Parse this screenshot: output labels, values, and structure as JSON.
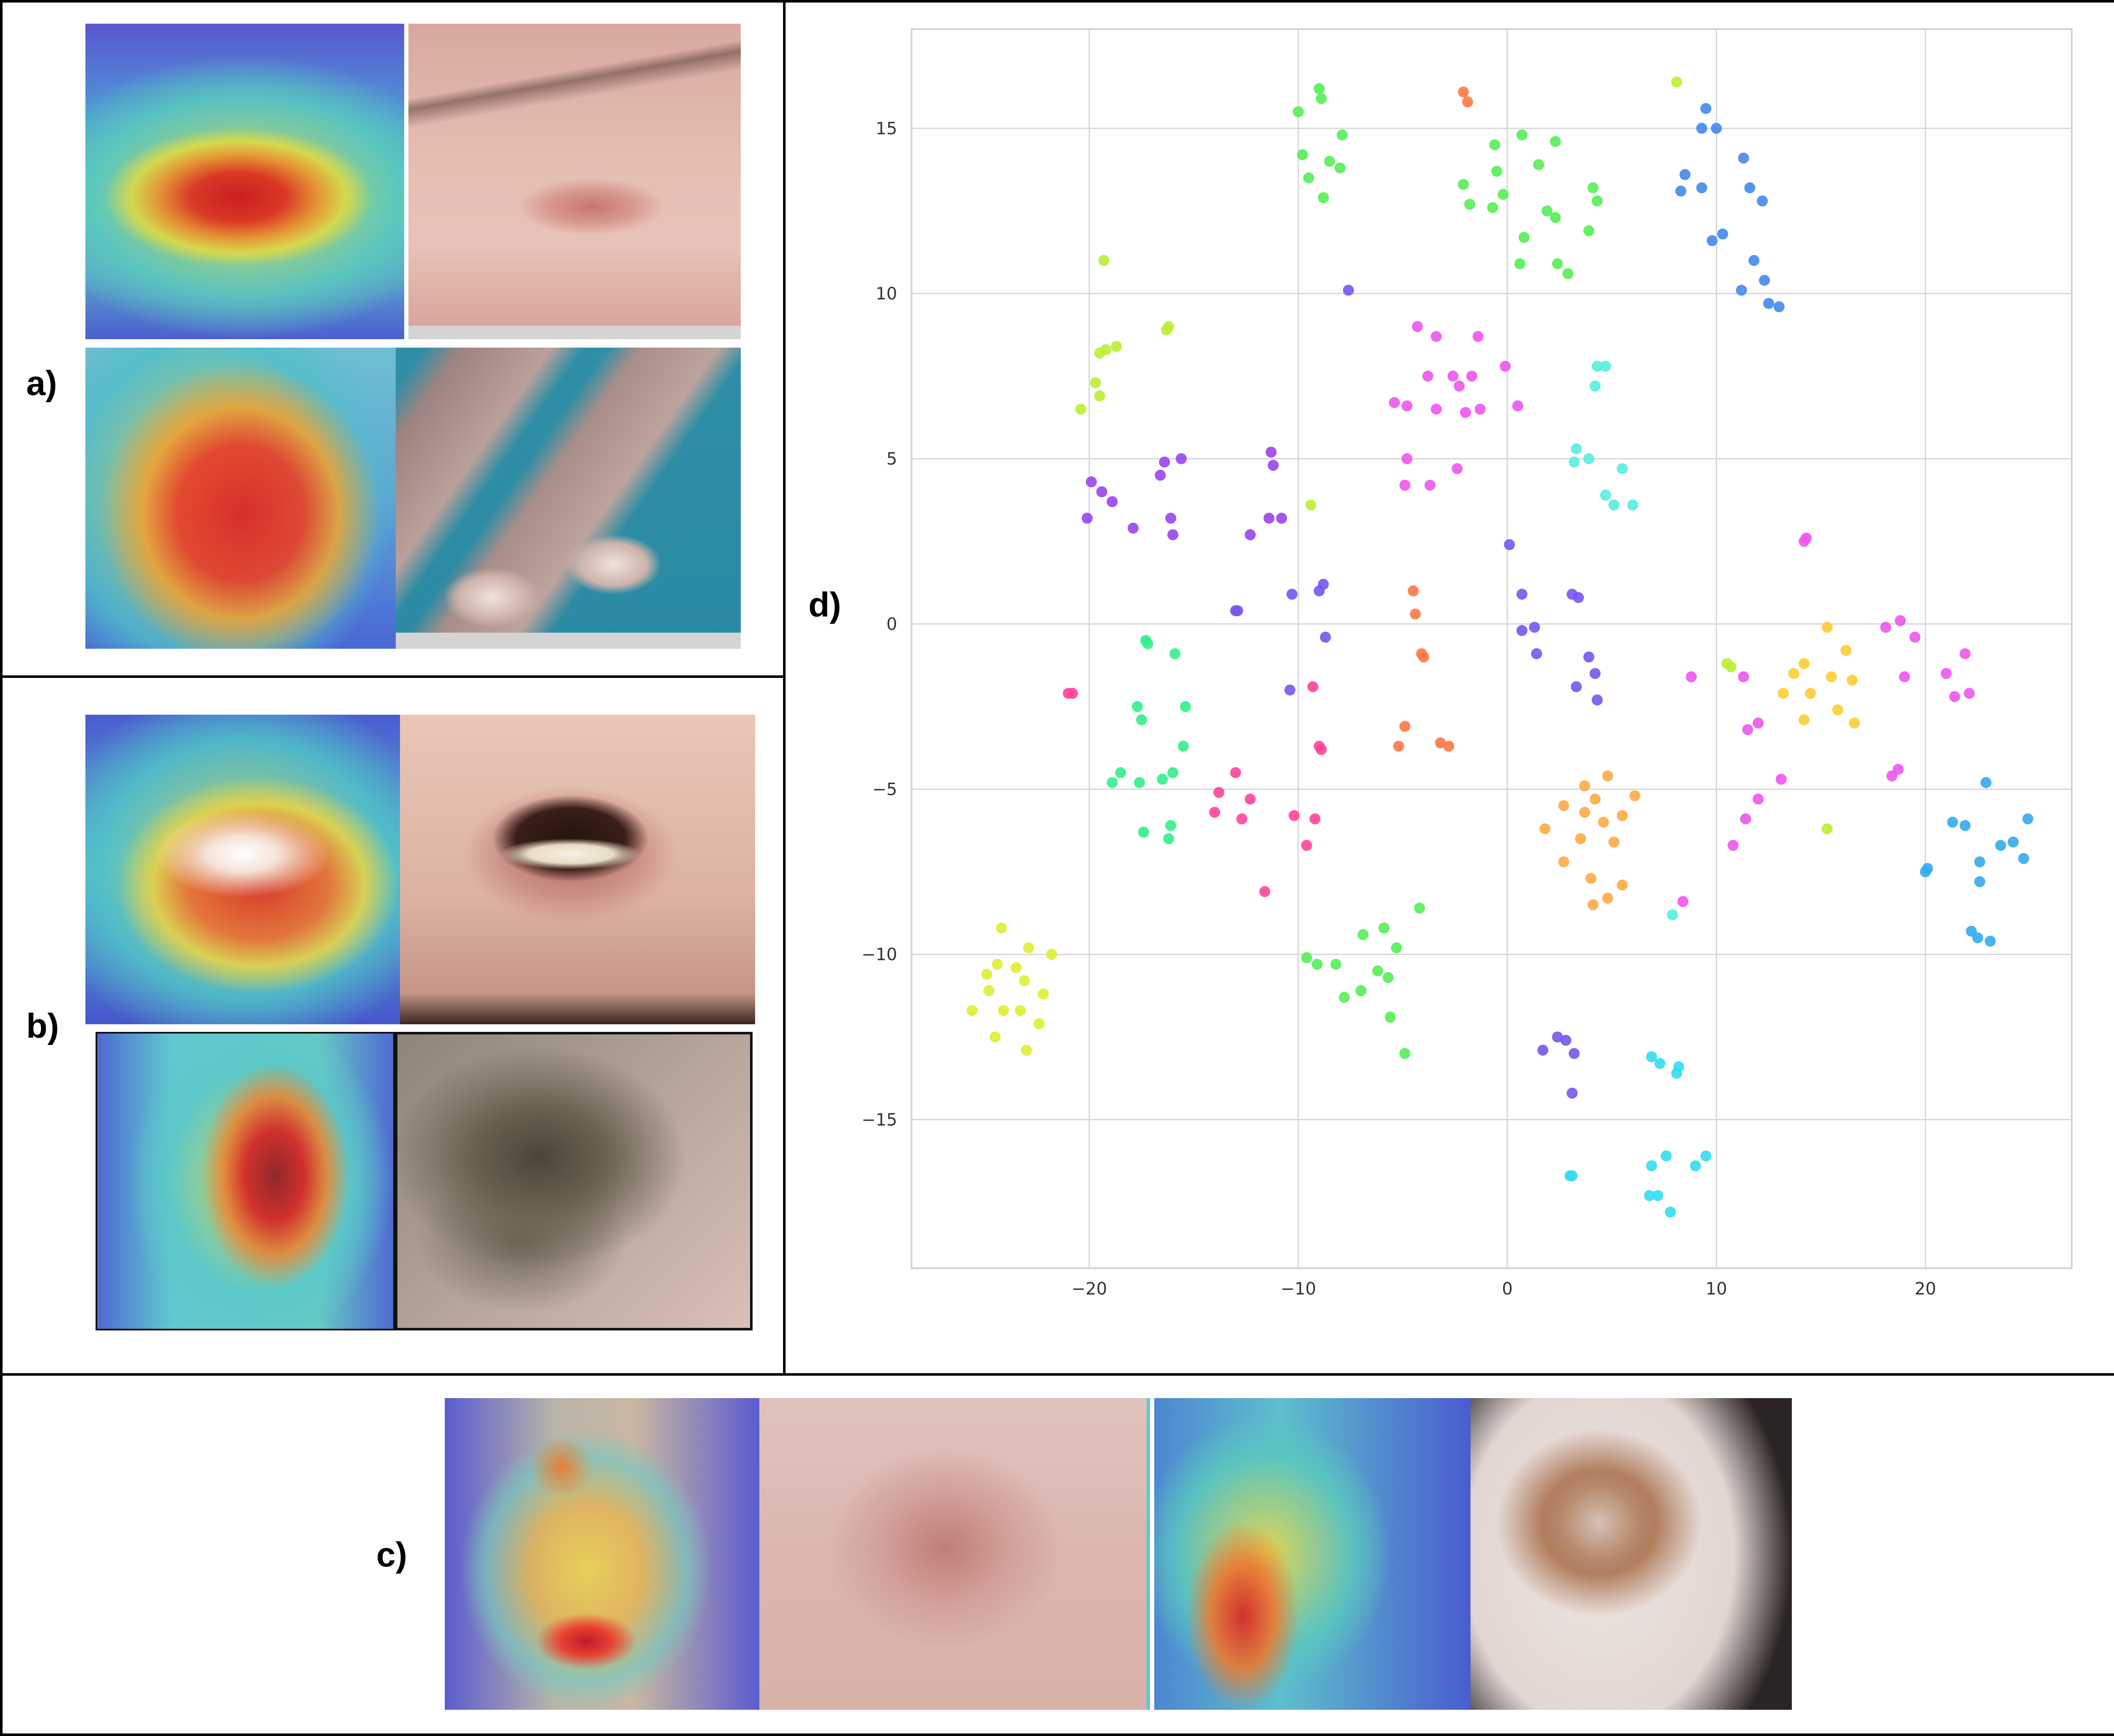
{
  "panels": {
    "a": {
      "label": "a)"
    },
    "b": {
      "label": "b)"
    },
    "c": {
      "label": "c)"
    },
    "d": {
      "label": "d)"
    }
  },
  "chart_data": {
    "type": "scatter",
    "title": "",
    "xlabel": "",
    "ylabel": "",
    "xlim": [
      -28.5,
      27
    ],
    "ylim": [
      -19.5,
      18
    ],
    "xticks": [
      -20,
      -10,
      0,
      10,
      20
    ],
    "yticks": [
      15,
      10,
      5,
      0,
      -5,
      -10,
      -15
    ],
    "xtick_labels": [
      "−20",
      "−10",
      "0",
      "10",
      "20"
    ],
    "ytick_labels": [
      "15",
      "10",
      "5",
      "0",
      "−5",
      "−10",
      "−15"
    ],
    "grid": true,
    "legend": "none",
    "series": [
      {
        "color": "#55ee55",
        "points": [
          [
            -10,
            15.5
          ],
          [
            -9,
            16.2
          ],
          [
            -8.9,
            15.9
          ],
          [
            -9.8,
            14.2
          ],
          [
            -8.5,
            14
          ],
          [
            -7.9,
            14.8
          ],
          [
            -9.5,
            13.5
          ],
          [
            -8,
            13.8
          ],
          [
            -8.8,
            12.9
          ],
          [
            -0.6,
            14.5
          ],
          [
            0.7,
            14.8
          ],
          [
            2.3,
            14.6
          ],
          [
            1.5,
            13.9
          ],
          [
            -0.5,
            13.7
          ],
          [
            -2.1,
            13.3
          ],
          [
            -1.8,
            12.7
          ],
          [
            -0.2,
            13
          ],
          [
            -0.7,
            12.6
          ],
          [
            1.9,
            12.5
          ],
          [
            2.3,
            12.3
          ],
          [
            4.1,
            13.2
          ],
          [
            4.3,
            12.8
          ],
          [
            0.8,
            11.7
          ],
          [
            3.9,
            11.9
          ],
          [
            0.6,
            10.9
          ],
          [
            2.4,
            10.9
          ],
          [
            2.9,
            10.6
          ],
          [
            -9.6,
            -10.1
          ],
          [
            -9.1,
            -10.3
          ],
          [
            -8.2,
            -10.3
          ],
          [
            -6.9,
            -9.4
          ],
          [
            -5.9,
            -9.2
          ],
          [
            -5.3,
            -9.8
          ],
          [
            -4.2,
            -8.6
          ],
          [
            -7.8,
            -11.3
          ],
          [
            -7,
            -11.1
          ],
          [
            -6.2,
            -10.5
          ],
          [
            -5.7,
            -10.7
          ],
          [
            -5.6,
            -11.9
          ],
          [
            -4.9,
            -13
          ]
        ]
      },
      {
        "color": "#bbee33",
        "points": [
          [
            8.1,
            16.4
          ],
          [
            -19.3,
            11
          ],
          [
            -19.5,
            8.2
          ],
          [
            -19.2,
            8.3
          ],
          [
            -18.7,
            8.4
          ],
          [
            -16.2,
            9
          ],
          [
            -16.3,
            8.9
          ],
          [
            -19.7,
            7.3
          ],
          [
            -19.5,
            6.9
          ],
          [
            -20.4,
            6.5
          ],
          [
            -9.4,
            3.6
          ],
          [
            10.5,
            -1.2
          ],
          [
            10.7,
            -1.3
          ],
          [
            15.3,
            -6.2
          ]
        ]
      },
      {
        "color": "#ff7744",
        "points": [
          [
            -2.1,
            16.1
          ],
          [
            -1.9,
            15.8
          ],
          [
            -4.5,
            1
          ],
          [
            -4.4,
            0.3
          ],
          [
            -4.1,
            -0.9
          ],
          [
            -4,
            -1
          ],
          [
            -4.9,
            -3.1
          ],
          [
            -5.2,
            -3.7
          ],
          [
            -3.2,
            -3.6
          ],
          [
            -2.8,
            -3.7
          ]
        ]
      },
      {
        "color": "#4488ee",
        "points": [
          [
            9.5,
            15.6
          ],
          [
            9.3,
            15
          ],
          [
            10,
            15
          ],
          [
            8.5,
            13.6
          ],
          [
            8.3,
            13.1
          ],
          [
            9.3,
            13.2
          ],
          [
            11.3,
            14.1
          ],
          [
            11.6,
            13.2
          ],
          [
            12.2,
            12.8
          ],
          [
            9.8,
            11.6
          ],
          [
            10.3,
            11.8
          ],
          [
            11.8,
            11
          ],
          [
            12.3,
            10.4
          ],
          [
            11.2,
            10.1
          ],
          [
            12.5,
            9.7
          ],
          [
            13,
            9.6
          ]
        ]
      },
      {
        "color": "#ee55ee",
        "points": [
          [
            -4.3,
            9
          ],
          [
            -3.4,
            8.7
          ],
          [
            -1.4,
            8.7
          ],
          [
            -0.1,
            7.8
          ],
          [
            -2.6,
            7.5
          ],
          [
            -2.3,
            7.2
          ],
          [
            -1.7,
            7.5
          ],
          [
            -3.8,
            7.5
          ],
          [
            -5.4,
            6.7
          ],
          [
            -4.8,
            6.6
          ],
          [
            -3.4,
            6.5
          ],
          [
            -2,
            6.4
          ],
          [
            -1.3,
            6.5
          ],
          [
            0.5,
            6.6
          ],
          [
            -4.8,
            5
          ],
          [
            -2.4,
            4.7
          ],
          [
            -4.9,
            4.2
          ],
          [
            -3.7,
            4.2
          ],
          [
            14.3,
            2.6
          ],
          [
            14.2,
            2.5
          ],
          [
            8.8,
            -1.6
          ],
          [
            11.3,
            -1.6
          ],
          [
            11.5,
            -3.2
          ],
          [
            12,
            -3
          ],
          [
            13.1,
            -4.7
          ],
          [
            12,
            -5.3
          ],
          [
            11.4,
            -5.9
          ],
          [
            10.8,
            -6.7
          ],
          [
            8.4,
            -8.4
          ],
          [
            18.1,
            -0.1
          ],
          [
            18.8,
            0.1
          ],
          [
            19.5,
            -0.4
          ],
          [
            19,
            -1.6
          ],
          [
            21,
            -1.5
          ],
          [
            21.9,
            -0.9
          ],
          [
            21.4,
            -2.2
          ],
          [
            22.1,
            -2.1
          ],
          [
            18.4,
            -4.6
          ],
          [
            18.7,
            -4.4
          ]
        ]
      },
      {
        "color": "#55eedd",
        "points": [
          [
            4.3,
            7.8
          ],
          [
            4.7,
            7.8
          ],
          [
            4.2,
            7.2
          ],
          [
            3.3,
            5.3
          ],
          [
            3.9,
            5
          ],
          [
            3.2,
            4.9
          ],
          [
            5.5,
            4.7
          ],
          [
            4.7,
            3.9
          ],
          [
            5.1,
            3.6
          ],
          [
            6,
            3.6
          ],
          [
            7.9,
            -8.8
          ]
        ]
      },
      {
        "color": "#9944ee",
        "points": [
          [
            -11.3,
            5.2
          ],
          [
            -11.2,
            4.8
          ],
          [
            -16.4,
            4.9
          ],
          [
            -15.6,
            5
          ],
          [
            -16.6,
            4.5
          ],
          [
            -19.9,
            4.3
          ],
          [
            -19.4,
            4
          ],
          [
            -18.9,
            3.7
          ],
          [
            -20.1,
            3.2
          ],
          [
            -17.9,
            2.9
          ],
          [
            -16.1,
            3.2
          ],
          [
            -16,
            2.7
          ],
          [
            -12.3,
            2.7
          ],
          [
            -11.4,
            3.2
          ],
          [
            -10.8,
            3.2
          ]
        ]
      },
      {
        "color": "#7755ee",
        "points": [
          [
            -7.6,
            10.1
          ],
          [
            -12.9,
            0.4
          ],
          [
            -13,
            0.4
          ],
          [
            -10.3,
            0.9
          ],
          [
            -8.8,
            1.2
          ],
          [
            -9,
            1
          ],
          [
            -8.7,
            -0.4
          ],
          [
            -10.4,
            -2
          ],
          [
            0.1,
            2.4
          ],
          [
            0.7,
            0.9
          ],
          [
            3.1,
            0.9
          ],
          [
            3.4,
            0.8
          ],
          [
            0.7,
            -0.2
          ],
          [
            1.3,
            -0.1
          ],
          [
            1.4,
            -0.9
          ],
          [
            3.9,
            -1
          ],
          [
            4.2,
            -1.5
          ],
          [
            3.3,
            -1.9
          ],
          [
            4.3,
            -2.3
          ],
          [
            2.4,
            -12.5
          ],
          [
            2.8,
            -12.6
          ],
          [
            1.7,
            -12.9
          ],
          [
            3.2,
            -13
          ],
          [
            3.1,
            -14.2
          ]
        ]
      },
      {
        "color": "#ff4499",
        "points": [
          [
            -21,
            -2.1
          ],
          [
            -20.8,
            -2.1
          ],
          [
            -9.3,
            -1.9
          ],
          [
            -9,
            -3.7
          ],
          [
            -8.9,
            -3.8
          ],
          [
            -13,
            -4.5
          ],
          [
            -13.8,
            -5.1
          ],
          [
            -12.3,
            -5.3
          ],
          [
            -14,
            -5.7
          ],
          [
            -12.7,
            -5.9
          ],
          [
            -10.2,
            -5.8
          ],
          [
            -9.2,
            -5.9
          ],
          [
            -9.6,
            -6.7
          ],
          [
            -11.6,
            -8.1
          ]
        ]
      },
      {
        "color": "#33ee88",
        "points": [
          [
            -17.3,
            -0.5
          ],
          [
            -17.2,
            -0.6
          ],
          [
            -15.9,
            -0.9
          ],
          [
            -17.7,
            -2.5
          ],
          [
            -15.4,
            -2.5
          ],
          [
            -17.5,
            -2.9
          ],
          [
            -15.5,
            -3.7
          ],
          [
            -18.5,
            -4.5
          ],
          [
            -16,
            -4.5
          ],
          [
            -16.5,
            -4.7
          ],
          [
            -18.9,
            -4.8
          ],
          [
            -17.6,
            -4.8
          ],
          [
            -16.1,
            -6.1
          ],
          [
            -17.4,
            -6.3
          ],
          [
            -16.2,
            -6.5
          ]
        ]
      },
      {
        "color": "#ffcc33",
        "points": [
          [
            15.3,
            -0.1
          ],
          [
            14.2,
            -1.2
          ],
          [
            16.2,
            -0.8
          ],
          [
            13.7,
            -1.5
          ],
          [
            15.5,
            -1.6
          ],
          [
            16.5,
            -1.7
          ],
          [
            13.2,
            -2.1
          ],
          [
            14.5,
            -2.1
          ],
          [
            15.8,
            -2.6
          ],
          [
            14.2,
            -2.9
          ],
          [
            16.6,
            -3
          ]
        ]
      },
      {
        "color": "#ffaa44",
        "points": [
          [
            3.7,
            -4.9
          ],
          [
            4.8,
            -4.6
          ],
          [
            4.2,
            -5.3
          ],
          [
            6.1,
            -5.2
          ],
          [
            2.7,
            -5.5
          ],
          [
            3.7,
            -5.7
          ],
          [
            5.5,
            -5.8
          ],
          [
            4.6,
            -6
          ],
          [
            1.8,
            -6.2
          ],
          [
            3.5,
            -6.5
          ],
          [
            5.1,
            -6.6
          ],
          [
            2.7,
            -7.2
          ],
          [
            4,
            -7.7
          ],
          [
            5.5,
            -7.9
          ],
          [
            4.1,
            -8.5
          ],
          [
            4.8,
            -8.3
          ]
        ]
      },
      {
        "color": "#33aaee",
        "points": [
          [
            22.9,
            -4.8
          ],
          [
            24.9,
            -5.9
          ],
          [
            21.3,
            -6
          ],
          [
            21.9,
            -6.1
          ],
          [
            24.2,
            -6.6
          ],
          [
            23.6,
            -6.7
          ],
          [
            24.7,
            -7.1
          ],
          [
            22.6,
            -7.2
          ],
          [
            20.1,
            -7.4
          ],
          [
            20,
            -7.5
          ],
          [
            22.6,
            -7.8
          ],
          [
            22.2,
            -9.3
          ],
          [
            22.5,
            -9.5
          ],
          [
            23.1,
            -9.6
          ]
        ]
      },
      {
        "color": "#ddee33",
        "points": [
          [
            -21.8,
            -10
          ],
          [
            -22.9,
            -9.8
          ],
          [
            -24.2,
            -9.2
          ],
          [
            -24.9,
            -10.6
          ],
          [
            -24.4,
            -10.3
          ],
          [
            -23.5,
            -10.4
          ],
          [
            -24.8,
            -11.1
          ],
          [
            -23.1,
            -10.8
          ],
          [
            -22.2,
            -11.2
          ],
          [
            -24.1,
            -11.7
          ],
          [
            -23.3,
            -11.7
          ],
          [
            -25.6,
            -11.7
          ],
          [
            -22.4,
            -12.1
          ],
          [
            -24.5,
            -12.5
          ],
          [
            -23,
            -12.9
          ]
        ]
      },
      {
        "color": "#33ddee",
        "points": [
          [
            6.9,
            -13.1
          ],
          [
            7.3,
            -13.3
          ],
          [
            8.2,
            -13.4
          ],
          [
            8.1,
            -13.6
          ],
          [
            3,
            -16.7
          ],
          [
            3.1,
            -16.7
          ],
          [
            6.9,
            -16.4
          ],
          [
            7.6,
            -16.1
          ],
          [
            9,
            -16.4
          ],
          [
            9.5,
            -16.1
          ],
          [
            6.8,
            -17.3
          ],
          [
            7.2,
            -17.3
          ],
          [
            7.8,
            -17.8
          ]
        ]
      }
    ]
  }
}
